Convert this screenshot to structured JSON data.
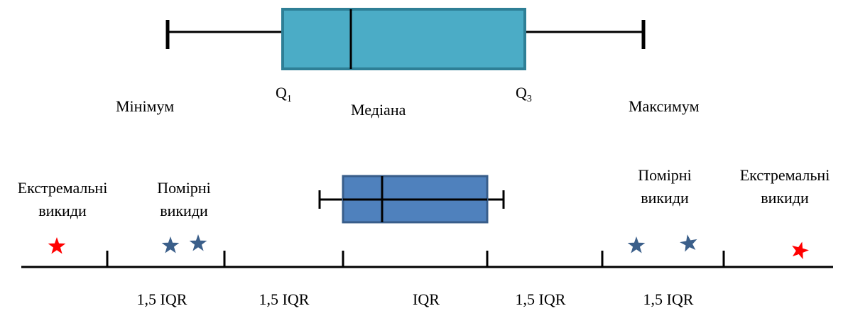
{
  "top_boxplot": {
    "labels": {
      "minimum": "Мінімум",
      "q1_letter": "Q",
      "q1_sub": "1",
      "median": "Медіана",
      "q3_letter": "Q",
      "q3_sub": "3",
      "maximum": "Максимум"
    },
    "colors": {
      "box_fill": "#4bacc6",
      "box_stroke": "#2e7f96"
    }
  },
  "bottom_boxplot": {
    "labels": {
      "extreme_left_line1": "Екстремальні",
      "extreme_left_line2": "викиди",
      "moderate_left_line1": "Помірні",
      "moderate_left_line2": "викиди",
      "moderate_right_line1": "Помірні",
      "moderate_right_line2": "викиди",
      "extreme_right_line1": "Екстремальні",
      "extreme_right_line2": "викиди"
    },
    "intervals": [
      "1,5 IQR",
      "1,5 IQR",
      "IQR",
      "1,5 IQR",
      "1,5 IQR"
    ],
    "colors": {
      "box_fill": "#4f81bd",
      "box_stroke": "#385d8a",
      "extreme_star": "#ff0000",
      "moderate_star": "#3b5f8a"
    }
  }
}
